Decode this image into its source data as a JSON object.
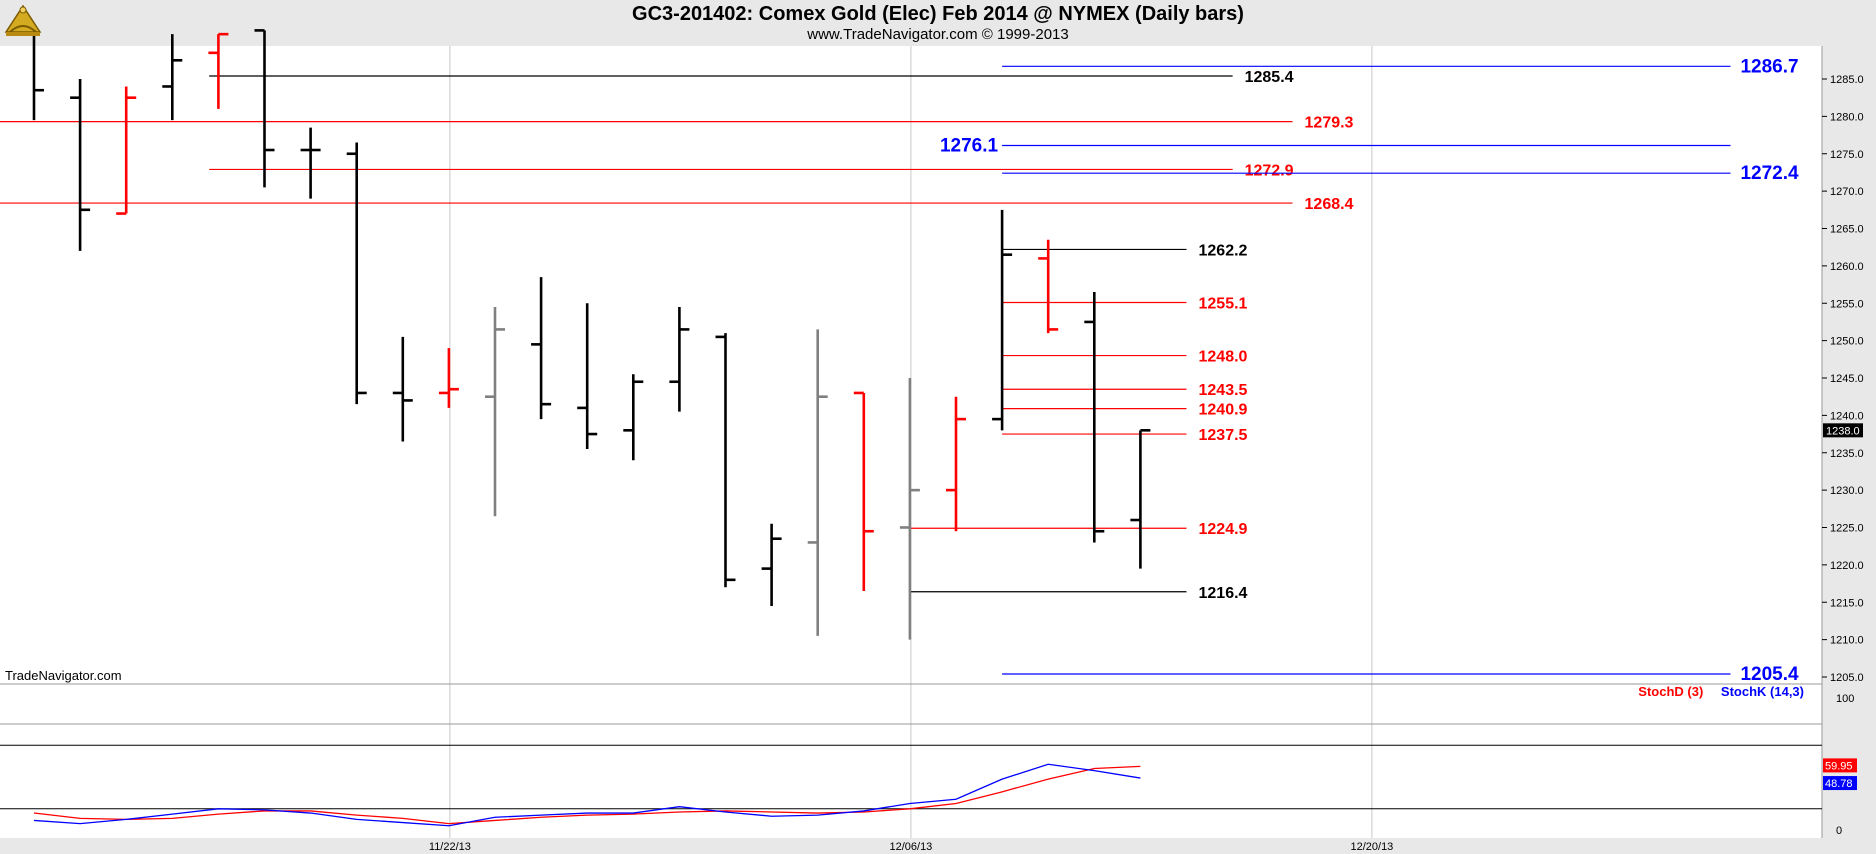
{
  "header": {
    "title": "GC3-201402:  Comex Gold (Elec) Feb 2014 @ NYMEX  (Daily bars)",
    "subtitle": "www.TradeNavigator.com © 1999-2013"
  },
  "watermark": "TradeNavigator.com",
  "icons": {
    "logo": "sextant-logo-icon"
  },
  "colors": {
    "up_bar": "#ff0000",
    "down_bar": "#000000",
    "neutral_bar": "#808080",
    "level_red": "#ff0000",
    "level_black": "#000000",
    "level_blue": "#0000ff",
    "stoch_d": "#ff0000",
    "stoch_k": "#0000ff"
  },
  "chart_data": {
    "type": "ohlc",
    "price_axis": {
      "min": 1203.6,
      "max": 1290.2,
      "ticks": [
        "1205.0",
        "1210.0",
        "1215.0",
        "1220.0",
        "1225.0",
        "1230.0",
        "1235.0",
        "1240.0",
        "1245.0",
        "1250.0",
        "1255.0",
        "1260.0",
        "1265.0",
        "1270.0",
        "1275.0",
        "1280.0",
        "1285.0"
      ],
      "last_price": "1238.0",
      "grid": true
    },
    "date_axis": {
      "labels": [
        {
          "text": "11/22/13",
          "slot": 9
        },
        {
          "text": "12/06/13",
          "slot": 19
        },
        {
          "text": "12/20/13",
          "slot": 29
        }
      ]
    },
    "bars": [
      {
        "slot": 0,
        "o": 1291.5,
        "h": 1292.0,
        "l": 1279.5,
        "c": 1283.5,
        "color": "down"
      },
      {
        "slot": 1,
        "o": 1282.5,
        "h": 1285.0,
        "l": 1262.0,
        "c": 1267.5,
        "color": "down"
      },
      {
        "slot": 2,
        "o": 1267.0,
        "h": 1284.0,
        "l": 1267.0,
        "c": 1282.5,
        "color": "up"
      },
      {
        "slot": 3,
        "o": 1284.0,
        "h": 1291.0,
        "l": 1279.5,
        "c": 1287.5,
        "color": "down"
      },
      {
        "slot": 4,
        "o": 1288.5,
        "h": 1291.0,
        "l": 1281.0,
        "c": 1291.0,
        "color": "up"
      },
      {
        "slot": 5,
        "o": 1291.5,
        "h": 1291.5,
        "l": 1270.5,
        "c": 1275.5,
        "color": "down"
      },
      {
        "slot": 6,
        "o": 1275.5,
        "h": 1278.5,
        "l": 1269.0,
        "c": 1275.5,
        "color": "down"
      },
      {
        "slot": 7,
        "o": 1275.0,
        "h": 1276.5,
        "l": 1241.5,
        "c": 1243.0,
        "color": "down"
      },
      {
        "slot": 8,
        "o": 1243.0,
        "h": 1250.5,
        "l": 1236.5,
        "c": 1242.0,
        "color": "down"
      },
      {
        "slot": 9,
        "o": 1243.0,
        "h": 1249.0,
        "l": 1241.0,
        "c": 1243.5,
        "color": "up"
      },
      {
        "slot": 10,
        "o": 1242.5,
        "h": 1254.5,
        "l": 1226.5,
        "c": 1251.5,
        "color": "neutral"
      },
      {
        "slot": 11,
        "o": 1249.5,
        "h": 1258.5,
        "l": 1239.5,
        "c": 1241.5,
        "color": "down"
      },
      {
        "slot": 12,
        "o": 1241.0,
        "h": 1255.0,
        "l": 1235.5,
        "c": 1237.5,
        "color": "down"
      },
      {
        "slot": 13,
        "o": 1238.0,
        "h": 1245.5,
        "l": 1234.0,
        "c": 1244.5,
        "color": "down"
      },
      {
        "slot": 14,
        "o": 1244.5,
        "h": 1254.5,
        "l": 1240.5,
        "c": 1251.5,
        "color": "down"
      },
      {
        "slot": 15,
        "o": 1250.5,
        "h": 1251.0,
        "l": 1217.0,
        "c": 1218.0,
        "color": "down"
      },
      {
        "slot": 16,
        "o": 1219.5,
        "h": 1225.5,
        "l": 1214.5,
        "c": 1223.5,
        "color": "down"
      },
      {
        "slot": 17,
        "o": 1223.0,
        "h": 1251.5,
        "l": 1210.5,
        "c": 1242.5,
        "color": "neutral"
      },
      {
        "slot": 18,
        "o": 1243.0,
        "h": 1243.0,
        "l": 1216.5,
        "c": 1224.5,
        "color": "up"
      },
      {
        "slot": 19,
        "o": 1225.0,
        "h": 1245.0,
        "l": 1210.0,
        "c": 1230.0,
        "color": "neutral"
      },
      {
        "slot": 20,
        "o": 1230.0,
        "h": 1242.5,
        "l": 1224.5,
        "c": 1239.5,
        "color": "up"
      },
      {
        "slot": 21,
        "o": 1239.5,
        "h": 1267.5,
        "l": 1238.0,
        "c": 1261.5,
        "color": "down"
      },
      {
        "slot": 22,
        "o": 1261.0,
        "h": 1263.5,
        "l": 1251.0,
        "c": 1251.5,
        "color": "up"
      },
      {
        "slot": 23,
        "o": 1252.5,
        "h": 1256.5,
        "l": 1223.0,
        "c": 1224.5,
        "color": "down"
      },
      {
        "slot": 24,
        "o": 1226.0,
        "h": 1238.0,
        "l": 1219.5,
        "c": 1238.0,
        "color": "down"
      }
    ],
    "levels": [
      {
        "value": 1286.7,
        "label": "1286.7",
        "color": "blue",
        "from_slot": 21,
        "to_slot": 36.8,
        "label_pos": "right"
      },
      {
        "value": 1285.4,
        "label": "1285.4",
        "color": "black",
        "from_slot": 3.8,
        "to_slot": 26,
        "label_pos": "after"
      },
      {
        "value": 1279.3,
        "label": "1279.3",
        "color": "red",
        "from_slot": -1,
        "to_slot": 27.3,
        "label_pos": "after"
      },
      {
        "value": 1276.1,
        "label": "1276.1",
        "color": "blue",
        "from_slot": 21,
        "to_slot": 36.8,
        "label_pos": "before"
      },
      {
        "value": 1272.9,
        "label": "1272.9",
        "color": "red",
        "from_slot": 3.8,
        "to_slot": 26,
        "label_pos": "after"
      },
      {
        "value": 1272.4,
        "label": "1272.4",
        "color": "blue",
        "from_slot": 21,
        "to_slot": 36.8,
        "label_pos": "right"
      },
      {
        "value": 1268.4,
        "label": "1268.4",
        "color": "red",
        "from_slot": -1,
        "to_slot": 27.3,
        "label_pos": "after"
      },
      {
        "value": 1262.2,
        "label": "1262.2",
        "color": "black",
        "from_slot": 21,
        "to_slot": 25,
        "label_pos": "after"
      },
      {
        "value": 1255.1,
        "label": "1255.1",
        "color": "red",
        "from_slot": 21,
        "to_slot": 25,
        "label_pos": "after"
      },
      {
        "value": 1248.0,
        "label": "1248.0",
        "color": "red",
        "from_slot": 21,
        "to_slot": 25,
        "label_pos": "after"
      },
      {
        "value": 1243.5,
        "label": "1243.5",
        "color": "red",
        "from_slot": 21,
        "to_slot": 25,
        "label_pos": "after"
      },
      {
        "value": 1240.9,
        "label": "1240.9",
        "color": "red",
        "from_slot": 21,
        "to_slot": 25,
        "label_pos": "after"
      },
      {
        "value": 1237.5,
        "label": "1237.5",
        "color": "red",
        "from_slot": 21,
        "to_slot": 25,
        "label_pos": "after"
      },
      {
        "value": 1224.9,
        "label": "1224.9",
        "color": "red",
        "from_slot": 19,
        "to_slot": 25,
        "label_pos": "after"
      },
      {
        "value": 1216.4,
        "label": "1216.4",
        "color": "black",
        "from_slot": 19,
        "to_slot": 25,
        "label_pos": "after"
      },
      {
        "value": 1205.4,
        "label": "1205.4",
        "color": "blue",
        "from_slot": 21,
        "to_slot": 36.8,
        "label_pos": "right"
      }
    ],
    "stochastic": {
      "axis": {
        "min": 0,
        "max": 100,
        "ticks": [
          "100",
          "0"
        ],
        "guides": [
          80,
          20
        ]
      },
      "legend": [
        "StochD (3)",
        "StochK (14,3)"
      ],
      "last_d": "59.95",
      "last_k": "48.78",
      "series": [
        {
          "name": "StochD (3)",
          "color": "red",
          "values": [
            16,
            11,
            10,
            11,
            15,
            18,
            18,
            14,
            11,
            6,
            9,
            12,
            14,
            15,
            17,
            18,
            17,
            16,
            17,
            20,
            25,
            36,
            48,
            58,
            60
          ]
        },
        {
          "name": "StochK (14,3)",
          "color": "blue",
          "values": [
            9,
            6,
            10,
            15,
            20,
            19,
            16,
            10,
            7,
            4,
            12,
            14,
            16,
            16,
            22,
            17,
            13,
            14,
            18,
            25,
            29,
            48,
            62,
            56,
            49
          ]
        }
      ]
    }
  }
}
